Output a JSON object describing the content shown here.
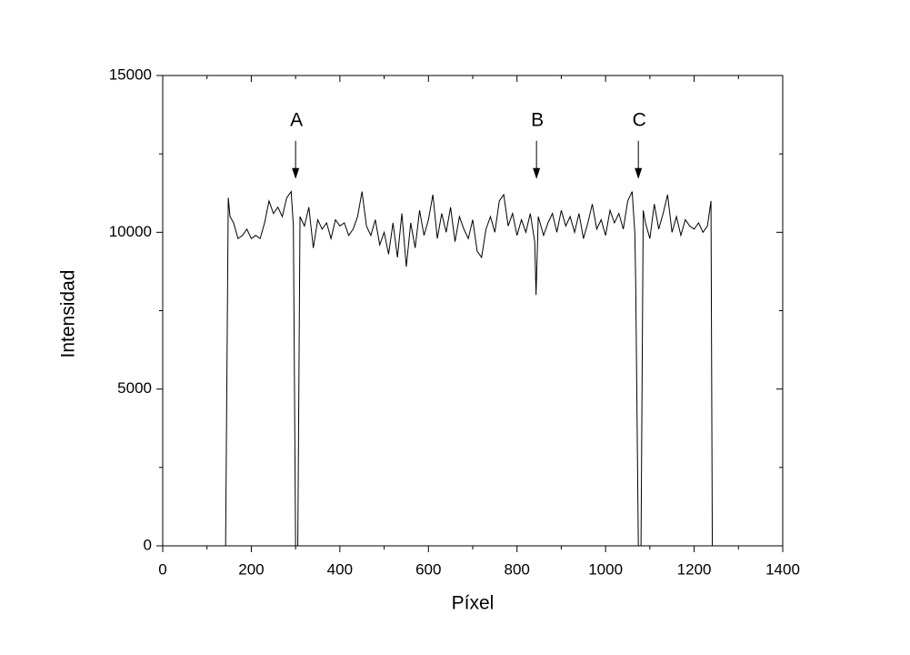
{
  "chart_data": {
    "type": "line",
    "xlabel": "Píxel",
    "ylabel": "Intensidad",
    "color": "#000000",
    "xlim": [
      0,
      1400
    ],
    "xticks": [
      0,
      200,
      400,
      600,
      800,
      1000,
      1200,
      1400
    ],
    "xminorticks": [
      100,
      300,
      500,
      700,
      900,
      1100,
      1300
    ],
    "ylim": [
      0,
      15000
    ],
    "yticks": [
      0,
      5000,
      10000,
      15000
    ],
    "yminorticks": [
      2500,
      7500,
      12500
    ],
    "annotations": [
      {
        "text": "A",
        "x": 300,
        "y": 11700
      },
      {
        "text": "B",
        "x": 844,
        "y": 11700
      },
      {
        "text": "C",
        "x": 1074,
        "y": 11700
      }
    ],
    "x": [
      142,
      148,
      152,
      160,
      170,
      180,
      190,
      200,
      210,
      220,
      230,
      240,
      250,
      260,
      270,
      280,
      290,
      295,
      300,
      305,
      310,
      320,
      330,
      340,
      350,
      360,
      370,
      380,
      390,
      400,
      410,
      420,
      430,
      440,
      450,
      460,
      470,
      480,
      490,
      500,
      510,
      520,
      530,
      540,
      550,
      560,
      570,
      580,
      590,
      600,
      610,
      620,
      630,
      640,
      650,
      660,
      670,
      680,
      690,
      700,
      710,
      720,
      730,
      740,
      750,
      760,
      770,
      780,
      790,
      800,
      810,
      820,
      830,
      840,
      843,
      848,
      860,
      870,
      880,
      890,
      900,
      910,
      920,
      930,
      940,
      950,
      960,
      970,
      980,
      990,
      1000,
      1010,
      1020,
      1030,
      1040,
      1050,
      1060,
      1066,
      1068,
      1074,
      1080,
      1085,
      1090,
      1100,
      1110,
      1120,
      1130,
      1140,
      1150,
      1160,
      1170,
      1180,
      1190,
      1200,
      1210,
      1220,
      1230,
      1238,
      1241
    ],
    "values": [
      0,
      11100,
      10500,
      10300,
      9800,
      9900,
      10100,
      9800,
      9900,
      9800,
      10300,
      11000,
      10600,
      10800,
      10500,
      11100,
      11300,
      10200,
      0,
      0,
      10500,
      10200,
      10800,
      9500,
      10400,
      10100,
      10300,
      9800,
      10400,
      10200,
      10300,
      9900,
      10100,
      10500,
      11300,
      10200,
      9900,
      10400,
      9600,
      10000,
      9300,
      10300,
      9200,
      10600,
      8900,
      10300,
      9500,
      10700,
      9900,
      10400,
      11200,
      9800,
      10600,
      10000,
      10800,
      9700,
      10500,
      10100,
      9800,
      10400,
      9400,
      9200,
      10100,
      10500,
      10000,
      11000,
      11200,
      10200,
      10600,
      9900,
      10400,
      10000,
      10600,
      9700,
      8000,
      10500,
      9900,
      10300,
      10600,
      10000,
      10700,
      10200,
      10500,
      10000,
      10600,
      9800,
      10300,
      10900,
      10100,
      10400,
      9900,
      10700,
      10300,
      10600,
      10100,
      11000,
      11300,
      10000,
      8400,
      0,
      0,
      10700,
      10300,
      9800,
      10900,
      10100,
      10600,
      11200,
      10000,
      10500,
      9900,
      10400,
      10200,
      10100,
      10300,
      10000,
      10200,
      11000,
      0
    ]
  }
}
